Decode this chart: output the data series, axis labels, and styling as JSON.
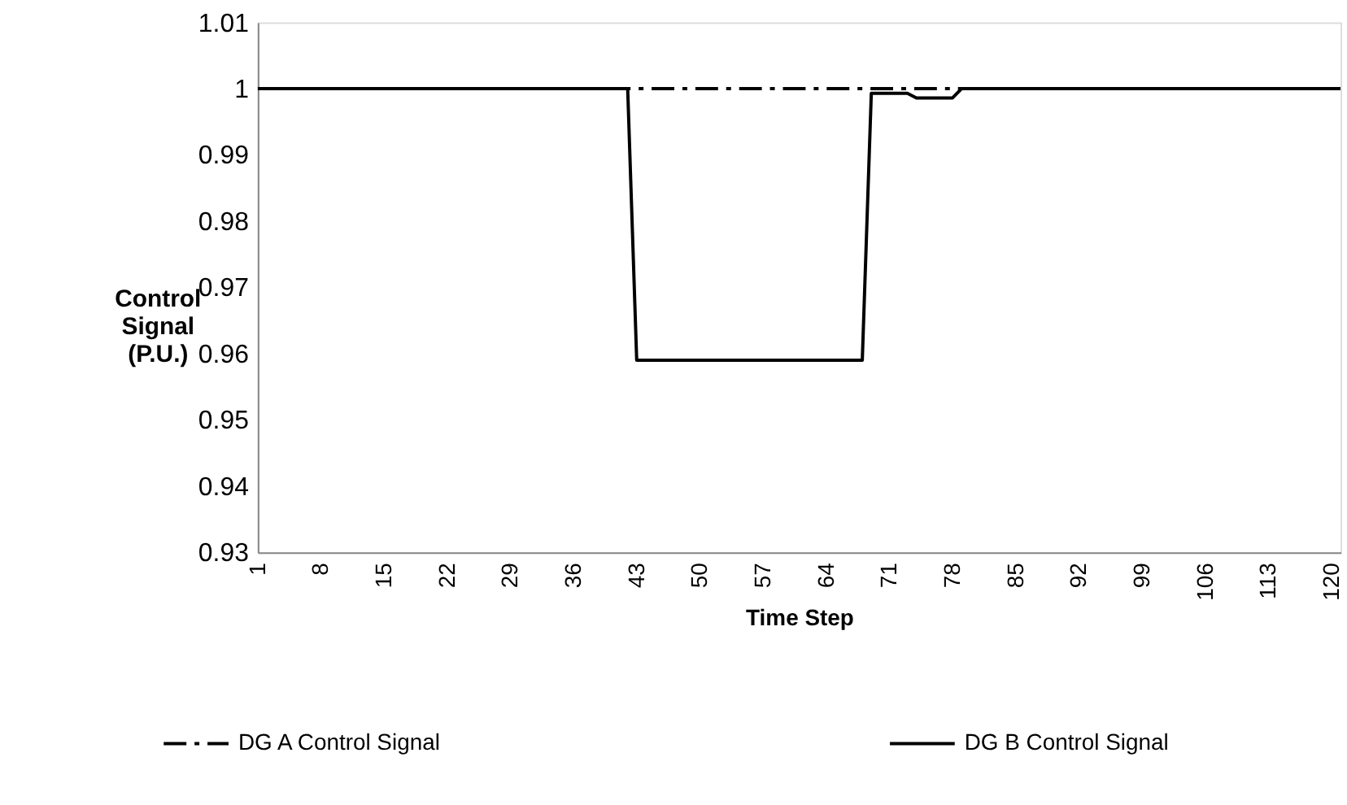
{
  "chart_data": {
    "type": "line",
    "xlabel": "Time Step",
    "ylabel": "Control Signal (P.U.)",
    "xlim": [
      1,
      121
    ],
    "xticks": [
      1,
      8,
      15,
      22,
      29,
      36,
      43,
      50,
      57,
      64,
      71,
      78,
      85,
      92,
      99,
      106,
      113,
      120
    ],
    "ylim": [
      0.93,
      1.01
    ],
    "yticks": [
      0.93,
      0.94,
      0.95,
      0.96,
      0.97,
      0.98,
      0.99,
      {
        "value": 1,
        "label": "1"
      },
      1.01
    ],
    "grid": false,
    "legend": "bottom",
    "marker": "none",
    "series": [
      {
        "name": "DG A Control Signal",
        "color": "#000000",
        "line_style": "dashed",
        "x": [
          1,
          121
        ],
        "values": [
          1,
          1
        ]
      },
      {
        "name": "DG B Control Signal",
        "color": "#000000",
        "line_style": "solid",
        "x": [
          1,
          42,
          43,
          68,
          69,
          73,
          74,
          78,
          79,
          121
        ],
        "values": [
          1,
          1,
          0.959,
          0.959,
          0.9993,
          0.9993,
          0.9986,
          0.9986,
          1,
          1
        ]
      }
    ]
  }
}
